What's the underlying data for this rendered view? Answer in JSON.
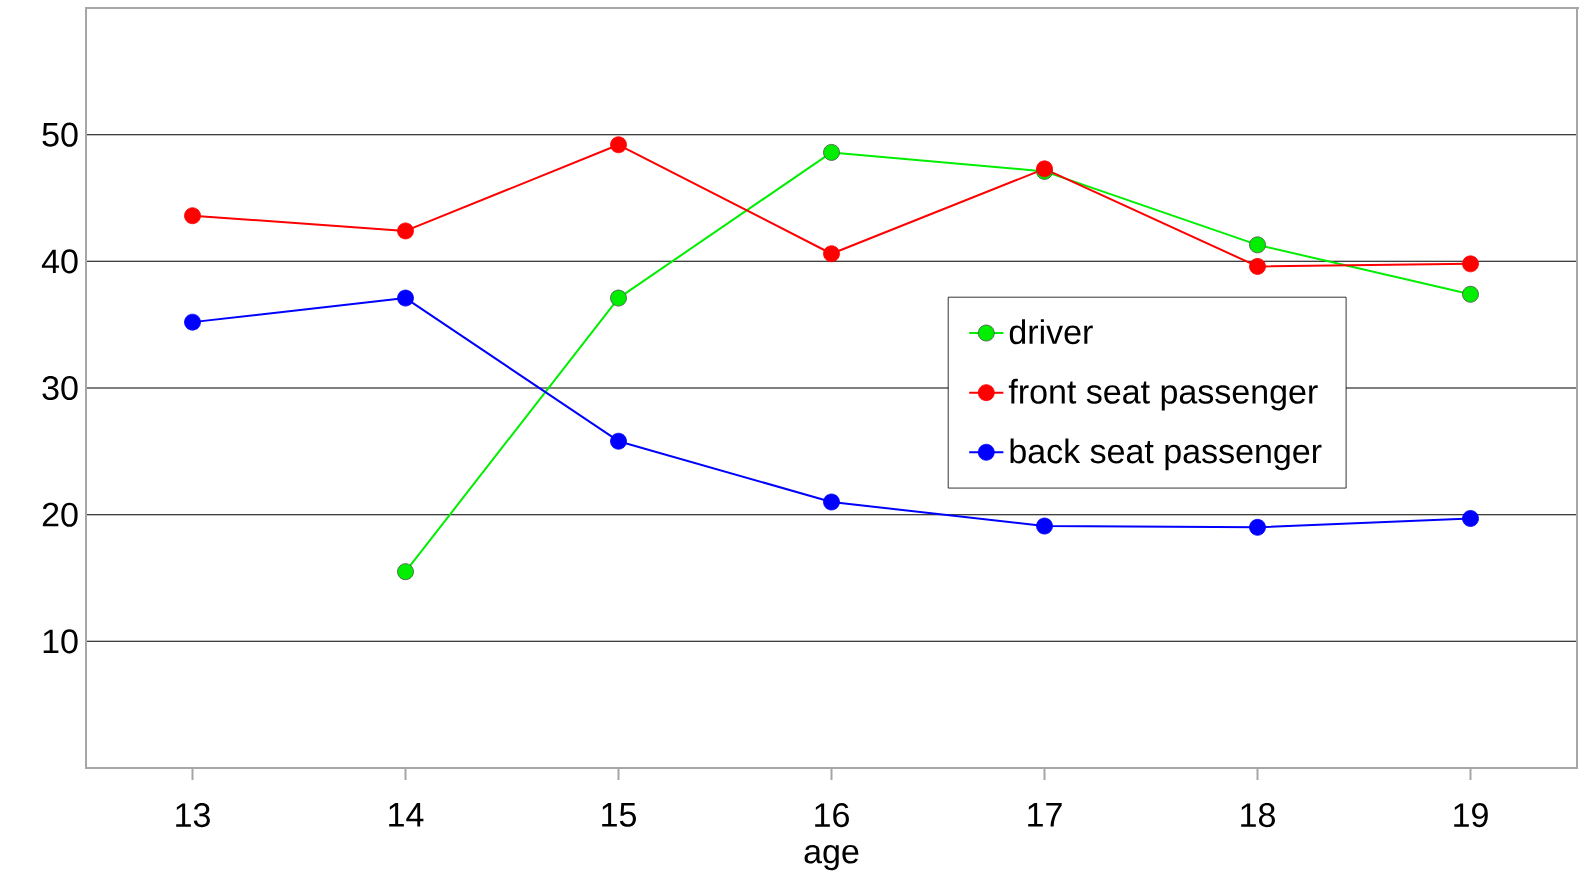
{
  "chart_data": {
    "type": "line",
    "xlabel": "age",
    "categories": [
      "13",
      "14",
      "15",
      "16",
      "17",
      "18",
      "19"
    ],
    "ylim": [
      0,
      60
    ],
    "yticks": [
      10,
      20,
      30,
      40,
      50
    ],
    "grid": "y",
    "legend": "right",
    "marker": "circle",
    "line_style": "solid",
    "series": [
      {
        "name": "driver",
        "color": "#00ee00",
        "values": [
          null,
          15.5,
          37.1,
          48.6,
          47.1,
          41.3,
          37.4
        ]
      },
      {
        "name": "front seat passenger",
        "color": "#ff0000",
        "values": [
          43.6,
          42.4,
          49.2,
          40.6,
          47.3,
          39.6,
          39.8
        ]
      },
      {
        "name": "back seat passenger",
        "color": "#0000ff",
        "values": [
          35.2,
          37.1,
          25.8,
          21.0,
          19.1,
          19.0,
          19.7
        ]
      }
    ]
  }
}
